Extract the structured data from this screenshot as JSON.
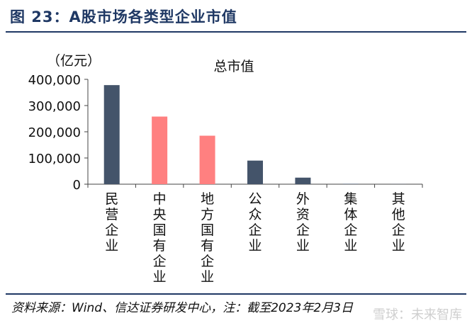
{
  "figure": {
    "title": "图 23：A股市场各类型企业市值",
    "source": "资料来源：Wind、信达证券研发中心，注：截至2023年2月3日",
    "watermark": "雪球：未来智库"
  },
  "chart_data": {
    "type": "bar",
    "title": "总市值",
    "unit_label": "（亿元）",
    "categories": [
      "民营企业",
      "中央国有企业",
      "地方国有企业",
      "公众企业",
      "外资企业",
      "集体企业",
      "其他企业"
    ],
    "values": [
      378000,
      258000,
      185000,
      90000,
      25000,
      1500,
      500
    ],
    "ylim": [
      0,
      400000
    ],
    "yticks": [
      0,
      100000,
      200000,
      300000,
      400000
    ],
    "ytick_labels": [
      "0",
      "100,000",
      "200,000",
      "300,000",
      "400,000"
    ],
    "colors": [
      "#44546a",
      "#ff8080",
      "#ff8080",
      "#44546a",
      "#44546a",
      "#44546a",
      "#44546a"
    ],
    "grid": false,
    "legend": "none"
  }
}
